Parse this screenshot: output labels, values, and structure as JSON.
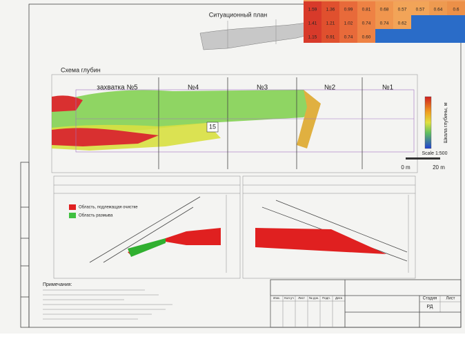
{
  "inset": {
    "rows": [
      [
        "1.59",
        "1.36",
        "0.99",
        "0.81",
        "0.68",
        "0.57",
        "0.57",
        "0.64",
        "0.6"
      ],
      [
        "1.41",
        "1.21",
        "1.02",
        "0.74",
        "0.74",
        "0.62"
      ],
      [
        "1.15",
        "0.91",
        "0.74",
        "0.60"
      ]
    ]
  },
  "site_plan": {
    "title": "Ситуационный план"
  },
  "depth_scheme": {
    "title": "Схема глубин",
    "sections": [
      "захватка №5",
      "№4",
      "№3",
      "№2",
      "№1"
    ],
    "marker": "15",
    "legend_title": "Шкала глубины, м",
    "scale_label": "Scale 1:500",
    "scale_start": "0 m",
    "scale_end": "20 m"
  },
  "profiles": {
    "legend": [
      "Область, подлежащая очистке",
      "Область размыва"
    ]
  },
  "notes": {
    "title": "Примечания:"
  },
  "title_block": {
    "headers": [
      "Изм.",
      "Кол.уч",
      "Лист",
      "№ док.",
      "Подп.",
      "Дата"
    ],
    "stage_headers": [
      "Стадия",
      "Лист"
    ],
    "stage": "РД"
  }
}
